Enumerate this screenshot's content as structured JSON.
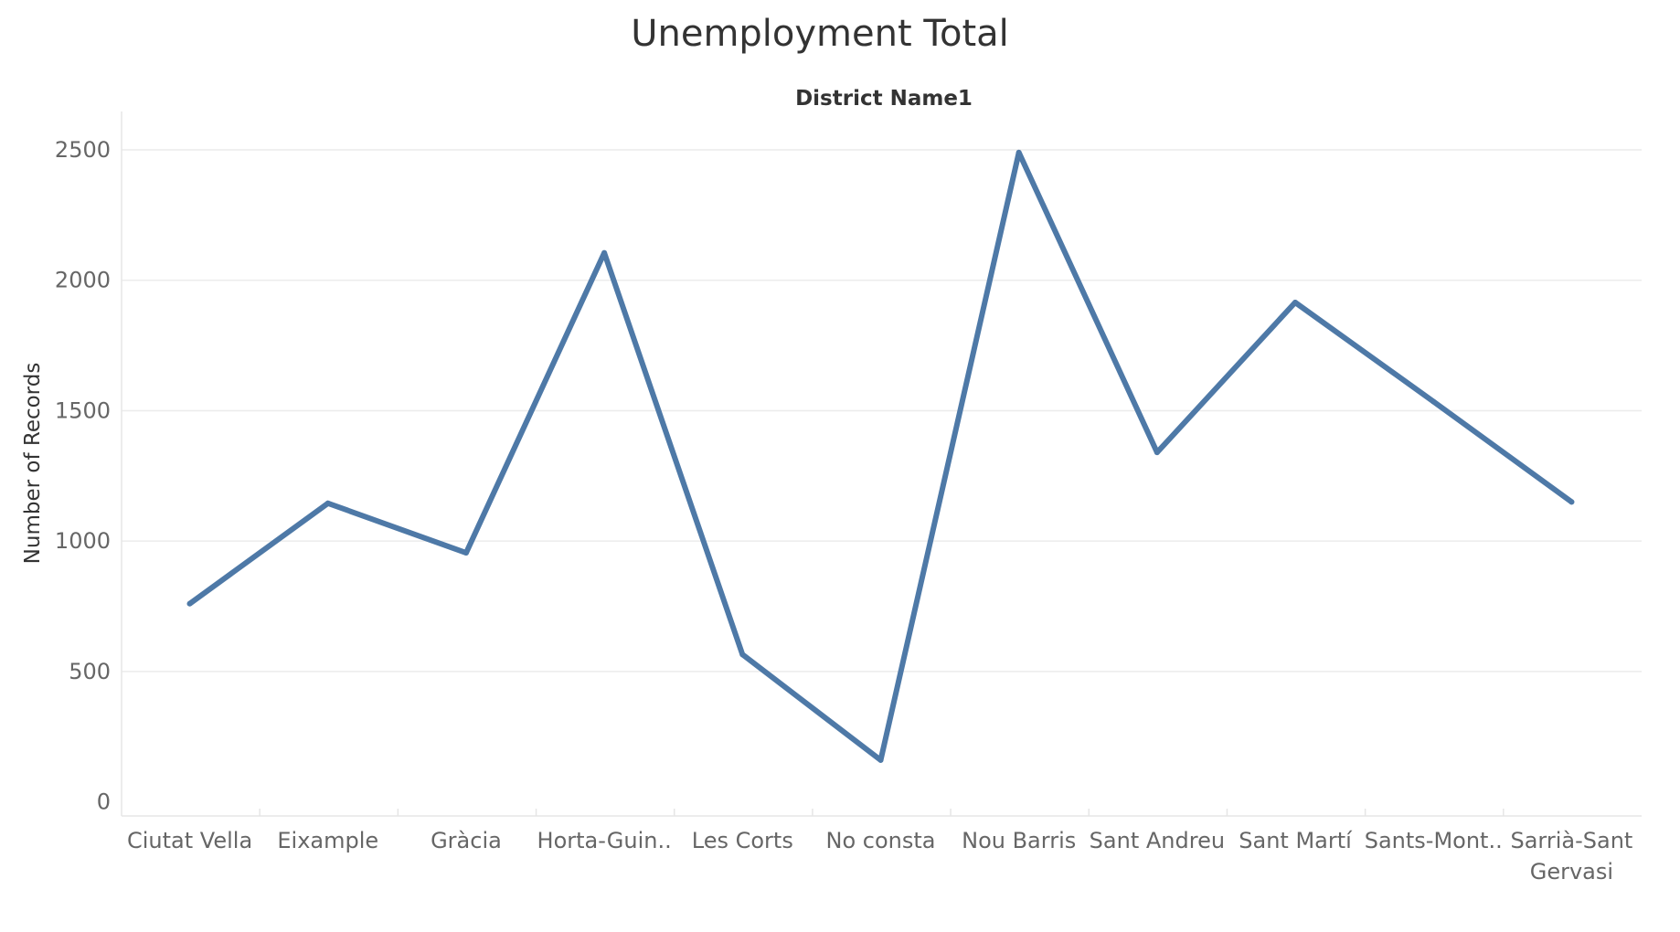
{
  "chart_data": {
    "type": "line",
    "title": "Unemployment Total",
    "header": "District Name1",
    "xlabel": "",
    "ylabel": "Number of Records",
    "ylim": [
      0,
      2620
    ],
    "yticks": [
      0,
      500,
      1000,
      1500,
      2000,
      2500
    ],
    "grid": true,
    "categories": [
      "Ciutat Vella",
      "Eixample",
      "Gràcia",
      "Horta-Guin..",
      "Les Corts",
      "No consta",
      "Nou Barris",
      "Sant Andreu",
      "Sant Martí",
      "Sants-Mont..",
      "Sarrià-Sant\nGervasi"
    ],
    "series": [
      {
        "name": "Number of Records",
        "color": "#4e79a7",
        "values": [
          760,
          1145,
          955,
          2105,
          565,
          160,
          2490,
          1340,
          1915,
          1535,
          1150
        ]
      }
    ]
  }
}
